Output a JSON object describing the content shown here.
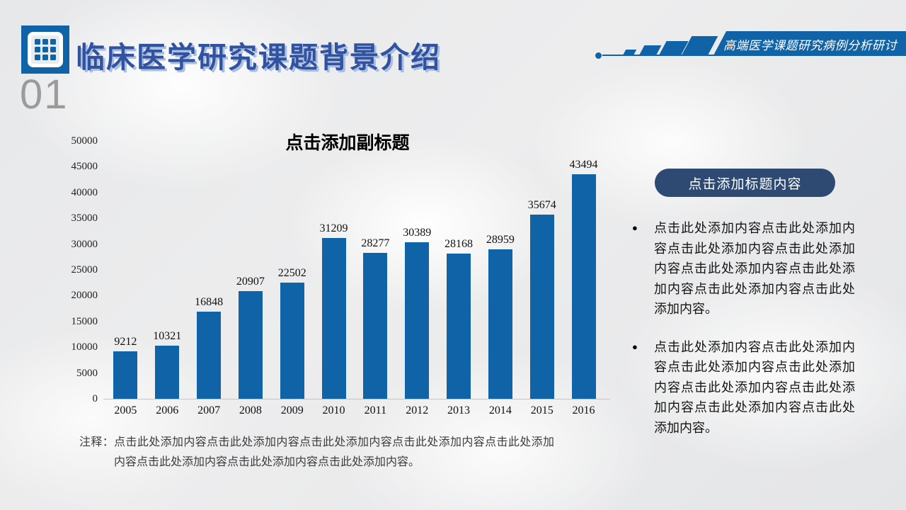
{
  "header": {
    "title": "临床医学研究课题背景介绍",
    "section_number": "01",
    "banner_text": "高端医学课题研究病例分析研讨"
  },
  "chart_data": {
    "type": "bar",
    "title": "点击添加副标题",
    "categories": [
      "2005",
      "2006",
      "2007",
      "2008",
      "2009",
      "2010",
      "2011",
      "2012",
      "2013",
      "2014",
      "2015",
      "2016"
    ],
    "values": [
      9212,
      10321,
      16848,
      20907,
      22502,
      31209,
      28277,
      30389,
      28168,
      28959,
      35674,
      43494
    ],
    "xlabel": "",
    "ylabel": "",
    "ylim": [
      0,
      50000
    ],
    "ytick_step": 5000,
    "grid": false,
    "legend": "none",
    "data_labels": true,
    "bar_color": "#0F63A6"
  },
  "note": {
    "label": "注释：",
    "text": "点击此处添加内容点击此处添加内容点击此处添加内容点击此处添加内容点击此处添加内容点击此处添加内容点击此处添加内容点击此处添加内容。"
  },
  "right_panel": {
    "button_label": "点击添加标题内容",
    "bullets": [
      "点击此处添加内容点击此处添加内容点击此处添加内容点击此处添加内容点击此处添加内容点击此处添加内容点击此处添加内容点击此处添加内容。",
      "点击此处添加内容点击此处添加内容点击此处添加内容点击此处添加内容点击此处添加内容点击此处添加内容点击此处添加内容点击此处添加内容。"
    ]
  },
  "colors": {
    "accent_blue": "#0F63A6",
    "title_fill": "#31529F",
    "title_shadow": "#A9BEE1",
    "button_navy": "#2E4A73",
    "section_number_gray": "#9B9B9B",
    "bullet_marker": "●"
  }
}
